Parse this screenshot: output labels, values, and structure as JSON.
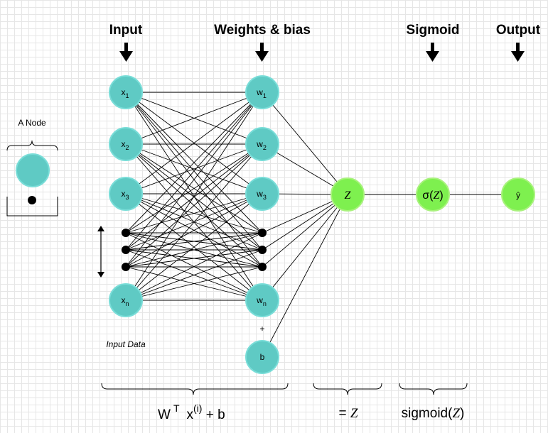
{
  "headers": {
    "input": "Input",
    "weights": "Weights & bias",
    "sigmoid": "Sigmoid",
    "output": "Output"
  },
  "legend": {
    "title": "A Node"
  },
  "inputs": [
    {
      "base": "x",
      "sub": "1"
    },
    {
      "base": "x",
      "sub": "2"
    },
    {
      "base": "x",
      "sub": "3"
    },
    {
      "base": "x",
      "sub": "n"
    }
  ],
  "weights": [
    {
      "base": "w",
      "sub": "1"
    },
    {
      "base": "w",
      "sub": "2"
    },
    {
      "base": "w",
      "sub": "3"
    },
    {
      "base": "w",
      "sub": "n"
    }
  ],
  "plus": "+",
  "bias": "b",
  "z_node": "Z",
  "sigma_node": {
    "prefix": "σ(",
    "var": "Z",
    "suffix": ")"
  },
  "output_node": "ŷ",
  "input_data_label": "Input Data",
  "bottom": {
    "formula": {
      "w": "W",
      "t": "T",
      "x": "x",
      "i": "(i)",
      "tail": " + b"
    },
    "equals": {
      "prefix": "= ",
      "var": "Z"
    },
    "sigmoid": {
      "prefix": "sigmoid(",
      "var": "Z",
      "suffix": ")"
    }
  },
  "colors": {
    "node_teal": "#5fcac4",
    "node_teal_stroke": "#79ddd8",
    "node_green": "#7ef04f",
    "node_green_stroke": "#a8f27c",
    "dot": "#000000"
  }
}
